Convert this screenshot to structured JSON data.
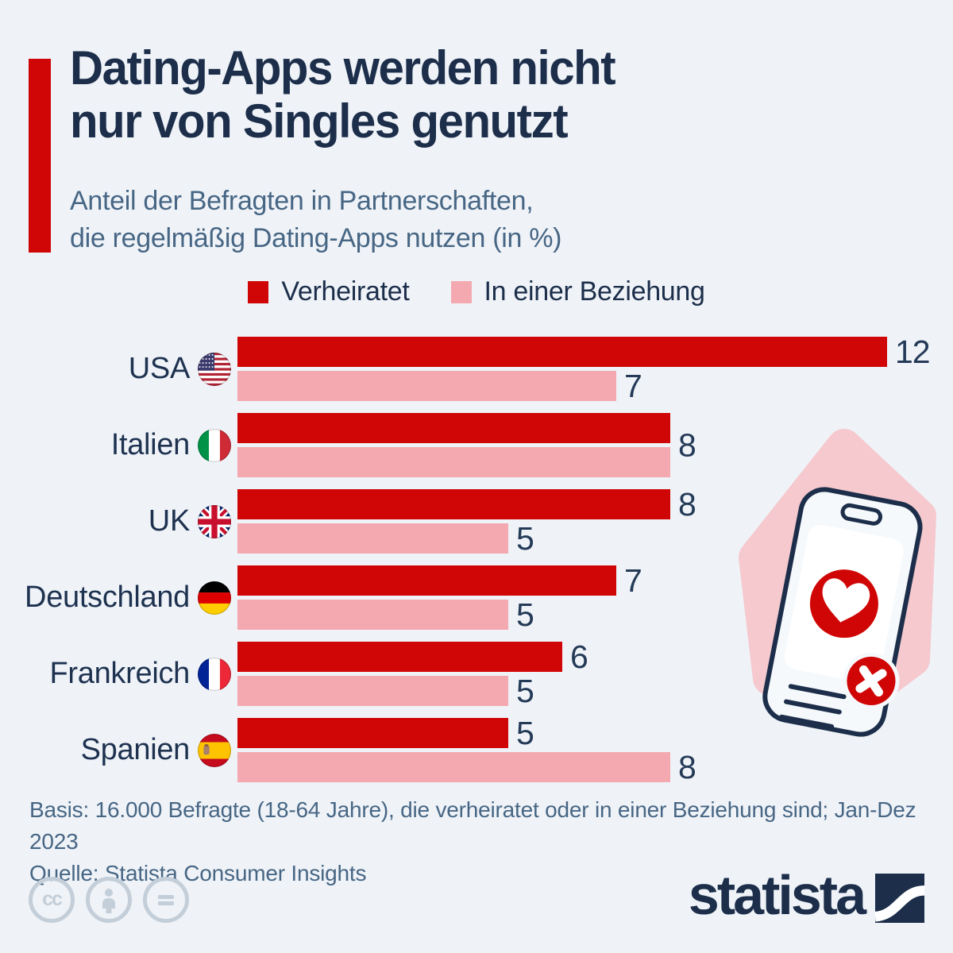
{
  "colors": {
    "background": "#eff3f8",
    "bar_red": "#d00606",
    "bar_pink": "#f4a9b1",
    "navy_text": "#1c2e4a",
    "muted_blue_text": "#476684",
    "blob_pink": "#f5c9ce",
    "license_gray": "#c4ced9"
  },
  "header": {
    "title_line1": "Dating-Apps werden nicht",
    "title_line2": "nur von Singles genutzt",
    "subtitle_line1": "Anteil der Befragten in Partnerschaften,",
    "subtitle_line2": "die regelmäßig Dating-Apps nutzen (in %)"
  },
  "chart_data": {
    "type": "bar",
    "orientation": "horizontal",
    "unit": "%",
    "xlim": [
      0,
      12
    ],
    "grid": false,
    "legend_position": "top-center",
    "value_labels": "end-of-bar",
    "categories": [
      "USA",
      "Italien",
      "UK",
      "Deutschland",
      "Frankreich",
      "Spanien"
    ],
    "flags": [
      "usa",
      "italy",
      "uk",
      "germany",
      "france",
      "spain"
    ],
    "series": [
      {
        "name": "Verheiratet",
        "color": "#d00606",
        "values": [
          12,
          8,
          8,
          7,
          6,
          5
        ]
      },
      {
        "name": "In einer Beziehung",
        "color": "#f4a9b1",
        "values": [
          7,
          8,
          5,
          5,
          5,
          8
        ]
      }
    ]
  },
  "footer": {
    "basis": "Basis: 16.000 Befragte (18-64 Jahre), die verheiratet oder in einer Beziehung sind; Jan-Dez 2023",
    "quelle": "Quelle: Statista Consumer Insights"
  },
  "branding": {
    "logo_text": "statista",
    "license_icons": [
      "cc",
      "attribution",
      "equal"
    ]
  },
  "illustration": {
    "description": "smartphone with heart match and dismiss buttons on pink blob"
  }
}
